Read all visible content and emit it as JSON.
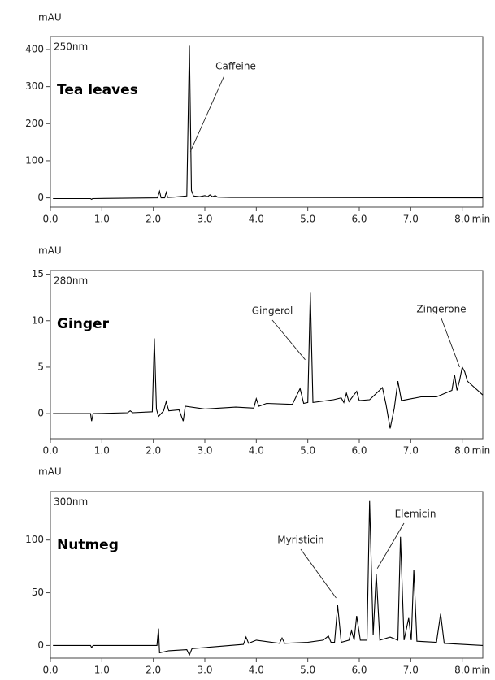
{
  "chart_data": [
    {
      "type": "line",
      "title": "Tea leaves",
      "subtitle": "250nm",
      "y_label": "mAU",
      "x_label": "min",
      "color": "#000000",
      "xlim": [
        0,
        8.4
      ],
      "ylim": [
        -25,
        435
      ],
      "xticks": [
        {
          "value": 0,
          "label": "0.0"
        },
        {
          "value": 1,
          "label": "1.0"
        },
        {
          "value": 2,
          "label": "2.0"
        },
        {
          "value": 3,
          "label": "3.0"
        },
        {
          "value": 4,
          "label": "4.0"
        },
        {
          "value": 5,
          "label": "5.0"
        },
        {
          "value": 6,
          "label": "6.0"
        },
        {
          "value": 7,
          "label": "7.0"
        },
        {
          "value": 8,
          "label": "8.0"
        }
      ],
      "yticks": [
        0,
        100,
        200,
        300,
        400
      ],
      "x": [
        0.05,
        0.78,
        0.8,
        0.82,
        2.08,
        2.12,
        2.15,
        2.22,
        2.25,
        2.28,
        2.4,
        2.65,
        2.7,
        2.74,
        2.78,
        2.9,
        3.0,
        3.05,
        3.1,
        3.15,
        3.2,
        3.25,
        3.5,
        8.4
      ],
      "values": [
        -2,
        -2,
        -4,
        -2,
        0,
        18,
        0,
        0,
        15,
        1,
        2,
        5,
        410,
        20,
        5,
        3,
        6,
        3,
        8,
        3,
        6,
        2,
        1,
        0
      ],
      "annotations": [
        {
          "text": "Caffeine",
          "x": 2.72,
          "y": 125
        }
      ]
    },
    {
      "type": "line",
      "title": "Ginger",
      "subtitle": "280nm",
      "y_label": "mAU",
      "x_label": "min",
      "color": "#000000",
      "xlim": [
        0,
        8.4
      ],
      "ylim": [
        -2.7,
        15.4
      ],
      "xticks": [
        {
          "value": 0,
          "label": "0.0"
        },
        {
          "value": 1,
          "label": "1.0"
        },
        {
          "value": 2,
          "label": "2.0"
        },
        {
          "value": 3,
          "label": "3.0"
        },
        {
          "value": 4,
          "label": "4.0"
        },
        {
          "value": 5,
          "label": "5.0"
        },
        {
          "value": 6,
          "label": "6.0"
        },
        {
          "value": 7,
          "label": "7.0"
        },
        {
          "value": 8,
          "label": "8.0"
        }
      ],
      "yticks": [
        0,
        5,
        10,
        15
      ],
      "x": [
        0.05,
        0.78,
        0.8,
        0.83,
        1.5,
        1.55,
        1.6,
        1.98,
        2.02,
        2.06,
        2.1,
        2.2,
        2.25,
        2.3,
        2.5,
        2.58,
        2.62,
        3.0,
        3.6,
        3.95,
        4.0,
        4.05,
        4.2,
        4.7,
        4.85,
        4.92,
        5.0,
        5.05,
        5.1,
        5.5,
        5.65,
        5.7,
        5.75,
        5.8,
        5.95,
        6.0,
        6.2,
        6.45,
        6.52,
        6.6,
        6.68,
        6.75,
        6.82,
        7.2,
        7.5,
        7.8,
        7.85,
        7.9,
        7.95,
        8.0,
        8.05,
        8.1,
        8.3,
        8.4
      ],
      "values": [
        0,
        0,
        -0.8,
        0,
        0.1,
        0.3,
        0.1,
        0.2,
        8.1,
        0.5,
        -0.3,
        0.3,
        1.3,
        0.3,
        0.4,
        -0.8,
        0.8,
        0.5,
        0.7,
        0.6,
        1.6,
        0.8,
        1.1,
        1.0,
        2.7,
        1.1,
        1.2,
        13,
        1.2,
        1.5,
        1.7,
        1.2,
        2.2,
        1.3,
        2.4,
        1.4,
        1.5,
        2.8,
        1.0,
        -1.6,
        0.6,
        3.5,
        1.4,
        1.8,
        1.8,
        2.5,
        4.2,
        2.5,
        3.6,
        5.0,
        4.5,
        3.5,
        2.5,
        2.0
      ],
      "annotations": [
        {
          "text": "Gingerol",
          "x": 4.95,
          "y": 5.8
        },
        {
          "text": "Zingerone",
          "x": 7.95,
          "y": 5
        }
      ]
    },
    {
      "type": "line",
      "title": "Nutmeg",
      "subtitle": "300nm",
      "y_label": "mAU",
      "x_label": "min",
      "color": "#000000",
      "xlim": [
        0,
        8.4
      ],
      "ylim": [
        -12,
        146
      ],
      "xticks": [
        {
          "value": 0,
          "label": "0.0"
        },
        {
          "value": 1,
          "label": "1.0"
        },
        {
          "value": 2,
          "label": "2.0"
        },
        {
          "value": 3,
          "label": "3.0"
        },
        {
          "value": 4,
          "label": "4.0"
        },
        {
          "value": 5,
          "label": "5.0"
        },
        {
          "value": 6,
          "label": "6.0"
        },
        {
          "value": 7,
          "label": "7.0"
        },
        {
          "value": 8,
          "label": "8.0"
        }
      ],
      "yticks": [
        0,
        50,
        100
      ],
      "x": [
        0.05,
        0.78,
        0.8,
        0.83,
        2.07,
        2.1,
        2.12,
        2.3,
        2.65,
        2.7,
        2.75,
        3.0,
        3.75,
        3.8,
        3.85,
        4.0,
        4.45,
        4.5,
        4.55,
        5.0,
        5.3,
        5.4,
        5.45,
        5.52,
        5.58,
        5.65,
        5.8,
        5.85,
        5.9,
        5.95,
        6.02,
        6.15,
        6.2,
        6.27,
        6.33,
        6.4,
        6.6,
        6.75,
        6.8,
        6.87,
        6.96,
        7.01,
        7.06,
        7.12,
        7.5,
        7.58,
        7.65,
        8.4
      ],
      "values": [
        0,
        0,
        -2,
        0,
        0,
        16,
        -7,
        -5,
        -4,
        -9,
        -3,
        -2,
        1,
        8,
        2,
        5,
        2,
        7,
        2,
        3,
        5,
        9,
        3,
        3,
        38,
        3,
        5,
        14,
        5,
        28,
        5,
        5,
        137,
        10,
        68,
        5,
        8,
        5,
        103,
        5,
        26,
        5,
        72,
        4,
        3,
        30,
        2,
        0
      ],
      "annotations": [
        {
          "text": "Myristicin",
          "x": 5.55,
          "y": 45
        },
        {
          "text": "Elemicin",
          "x": 6.35,
          "y": 73
        }
      ]
    }
  ]
}
